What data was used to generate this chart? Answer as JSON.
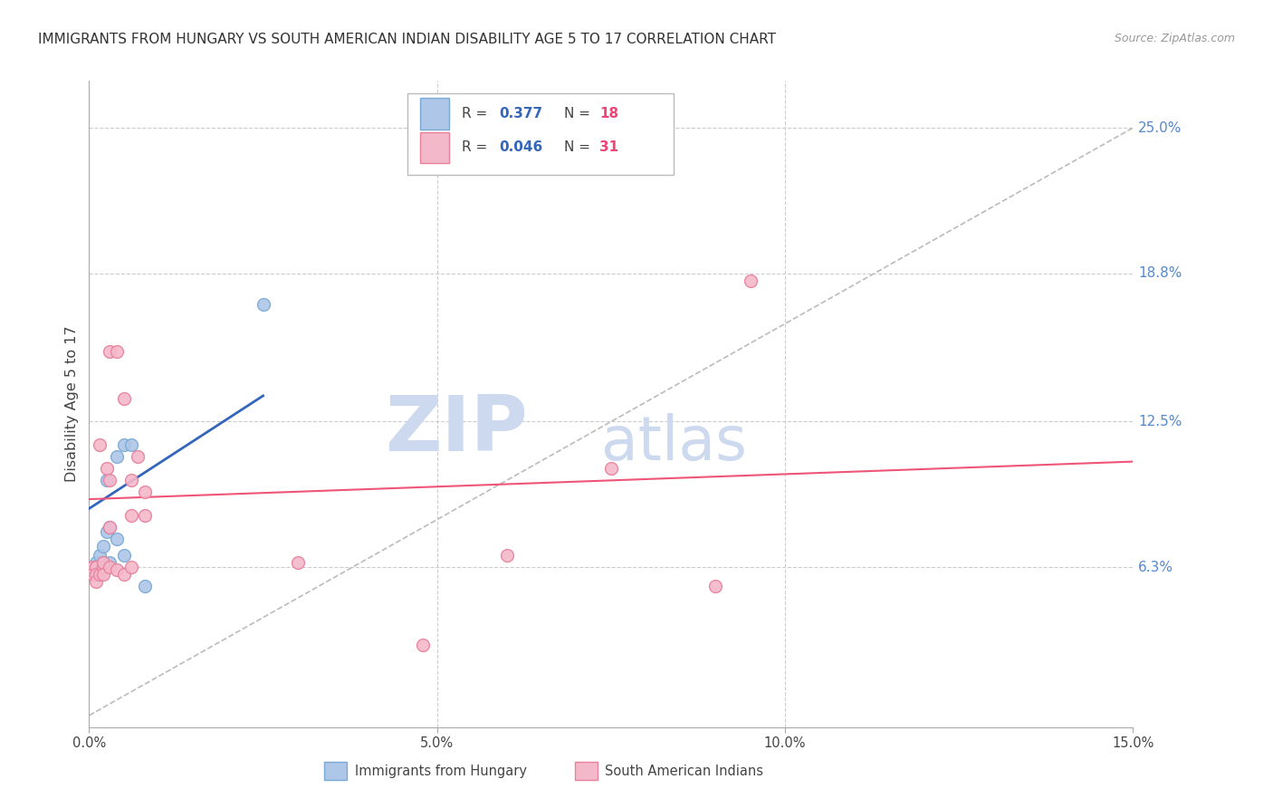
{
  "title": "IMMIGRANTS FROM HUNGARY VS SOUTH AMERICAN INDIAN DISABILITY AGE 5 TO 17 CORRELATION CHART",
  "source": "Source: ZipAtlas.com",
  "ylabel": "Disability Age 5 to 17",
  "xlim": [
    0.0,
    0.15
  ],
  "ylim": [
    -0.005,
    0.27
  ],
  "xticks": [
    0.0,
    0.05,
    0.1,
    0.15
  ],
  "xticklabels": [
    "0.0%",
    "5.0%",
    "10.0%",
    "15.0%"
  ],
  "ytick_right_values": [
    0.063,
    0.125,
    0.188,
    0.25
  ],
  "ytick_right_labels": [
    "6.3%",
    "12.5%",
    "18.8%",
    "25.0%"
  ],
  "grid_color": "#cccccc",
  "background_color": "#ffffff",
  "hungary_color": "#aec6e8",
  "hungary_edge_color": "#7aaad4",
  "sa_indian_color": "#f4b8cb",
  "sa_indian_edge_color": "#e8809a",
  "hungary_R": 0.377,
  "hungary_N": 18,
  "sa_indian_R": 0.046,
  "sa_indian_N": 31,
  "hungary_line_color": "#3366bb",
  "sa_indian_line_color": "#ee5577",
  "ref_line_color": "#bbbbbb",
  "watermark_zip": "ZIP",
  "watermark_atlas": "atlas",
  "watermark_color": "#ccd9ee",
  "marker_size": 100,
  "hungary_x": [
    0.0005,
    0.001,
    0.001,
    0.0015,
    0.0015,
    0.002,
    0.002,
    0.0025,
    0.0025,
    0.003,
    0.003,
    0.004,
    0.004,
    0.005,
    0.005,
    0.006,
    0.008,
    0.025
  ],
  "hungary_y": [
    0.063,
    0.063,
    0.065,
    0.063,
    0.068,
    0.072,
    0.065,
    0.1,
    0.078,
    0.08,
    0.065,
    0.11,
    0.075,
    0.115,
    0.068,
    0.115,
    0.055,
    0.175
  ],
  "sa_indian_x": [
    0.0005,
    0.0005,
    0.001,
    0.001,
    0.001,
    0.0015,
    0.0015,
    0.002,
    0.002,
    0.002,
    0.0025,
    0.003,
    0.003,
    0.003,
    0.003,
    0.004,
    0.004,
    0.005,
    0.005,
    0.006,
    0.006,
    0.006,
    0.007,
    0.008,
    0.008,
    0.03,
    0.048,
    0.06,
    0.075,
    0.09,
    0.095
  ],
  "sa_indian_y": [
    0.063,
    0.06,
    0.063,
    0.06,
    0.057,
    0.06,
    0.115,
    0.063,
    0.065,
    0.06,
    0.105,
    0.063,
    0.08,
    0.1,
    0.155,
    0.062,
    0.155,
    0.06,
    0.135,
    0.063,
    0.085,
    0.1,
    0.11,
    0.085,
    0.095,
    0.065,
    0.03,
    0.068,
    0.105,
    0.055,
    0.185
  ],
  "hungary_line_x0": 0.0,
  "hungary_line_y0": 0.088,
  "hungary_line_x1": 0.025,
  "hungary_line_y1": 0.136,
  "sa_line_x0": 0.0,
  "sa_line_y0": 0.092,
  "sa_line_x1": 0.15,
  "sa_line_y1": 0.108,
  "ref_line_x0": 0.0,
  "ref_line_y0": 0.0,
  "ref_line_x1": 0.15,
  "ref_line_y1": 0.25,
  "legend_R1": "0.377",
  "legend_N1": "18",
  "legend_R2": "0.046",
  "legend_N2": "31"
}
